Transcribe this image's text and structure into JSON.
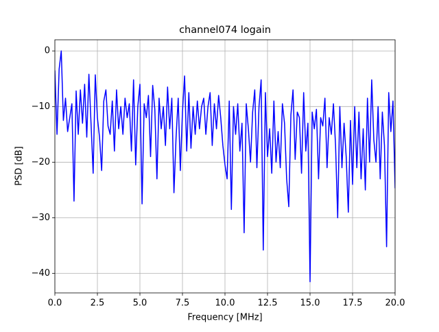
{
  "chart_data": {
    "type": "line",
    "title": "channel074 logain",
    "xlabel": "Frequency [MHz]",
    "ylabel": "PSD [dB]",
    "x": [
      0,
      0.125,
      0.25,
      0.375,
      0.5,
      0.625,
      0.75,
      0.875,
      1,
      1.125,
      1.25,
      1.375,
      1.5,
      1.625,
      1.75,
      1.875,
      2,
      2.125,
      2.25,
      2.375,
      2.5,
      2.625,
      2.75,
      2.875,
      3,
      3.125,
      3.25,
      3.375,
      3.5,
      3.625,
      3.75,
      3.875,
      4,
      4.125,
      4.25,
      4.375,
      4.5,
      4.625,
      4.75,
      4.875,
      5,
      5.125,
      5.25,
      5.375,
      5.5,
      5.625,
      5.75,
      5.875,
      6,
      6.125,
      6.25,
      6.375,
      6.5,
      6.625,
      6.75,
      6.875,
      7,
      7.125,
      7.25,
      7.375,
      7.5,
      7.625,
      7.75,
      7.875,
      8,
      8.125,
      8.25,
      8.375,
      8.5,
      8.625,
      8.75,
      8.875,
      9,
      9.125,
      9.25,
      9.375,
      9.5,
      9.625,
      9.75,
      9.875,
      10,
      10.125,
      10.25,
      10.375,
      10.5,
      10.625,
      10.75,
      10.875,
      11,
      11.125,
      11.25,
      11.375,
      11.5,
      11.625,
      11.75,
      11.875,
      12,
      12.125,
      12.25,
      12.375,
      12.5,
      12.625,
      12.75,
      12.875,
      13,
      13.125,
      13.25,
      13.375,
      13.5,
      13.625,
      13.75,
      13.875,
      14,
      14.125,
      14.25,
      14.375,
      14.5,
      14.625,
      14.75,
      14.875,
      15,
      15.125,
      15.25,
      15.375,
      15.5,
      15.625,
      15.75,
      15.875,
      16,
      16.125,
      16.25,
      16.375,
      16.5,
      16.625,
      16.75,
      16.875,
      17,
      17.125,
      17.25,
      17.375,
      17.5,
      17.625,
      17.75,
      17.875,
      18,
      18.125,
      18.25,
      18.375,
      18.5,
      18.625,
      18.75,
      18.875,
      19,
      19.125,
      19.25,
      19.375,
      19.5,
      19.625,
      19.75,
      19.875,
      20
    ],
    "series": [
      {
        "color": "#0000ff",
        "values": [
          -3.5,
          -15,
          -3.3,
          0,
          -12.5,
          -8.5,
          -14.5,
          -12,
          -9.5,
          -27,
          -7.2,
          -15,
          -7,
          -13,
          -6,
          -15.5,
          -4.2,
          -13,
          -22,
          -4.3,
          -12,
          -15.5,
          -21.5,
          -9,
          -7,
          -13.5,
          -15,
          -9,
          -18,
          -7,
          -14,
          -10,
          -15,
          -8.5,
          -12,
          -9.5,
          -18,
          -5.2,
          -20.5,
          -10,
          -6,
          -27.5,
          -9.5,
          -12,
          -8,
          -19,
          -6.2,
          -10.5,
          -23,
          -8.5,
          -14,
          -10,
          -17,
          -6.5,
          -14,
          -8.5,
          -25.5,
          -15.5,
          -8.5,
          -21.5,
          -11,
          -4.5,
          -18,
          -7.5,
          -17.5,
          -10,
          -15,
          -9,
          -14,
          -10,
          -8.5,
          -15,
          -10,
          -7.5,
          -17,
          -9.5,
          -14,
          -8,
          -12,
          -17,
          -20.5,
          -23,
          -9,
          -28.5,
          -10,
          -15,
          -9.5,
          -18,
          -13,
          -32.7,
          -9.5,
          -14,
          -20,
          -11,
          -7,
          -21,
          -10,
          -5.2,
          -35.8,
          -7.5,
          -19,
          -14,
          -22,
          -9,
          -20,
          -14.5,
          -21,
          -9.5,
          -13,
          -23,
          -28,
          -11.5,
          -7,
          -19.5,
          -11,
          -12,
          -22,
          -7.5,
          -18,
          -13,
          -41.5,
          -11,
          -14,
          -10.5,
          -23,
          -12,
          -13.5,
          -8.5,
          -21,
          -12,
          -15,
          -9.5,
          -17,
          -30,
          -10,
          -21,
          -13,
          -19,
          -29,
          -12.5,
          -24,
          -10,
          -21,
          -11,
          -23,
          -14,
          -25,
          -8.5,
          -20,
          -5.2,
          -16,
          -20,
          -10,
          -23,
          -11,
          -17,
          -35.2,
          -7.5,
          -14.5,
          -9,
          -24.7
        ]
      }
    ],
    "xlim": [
      0,
      20
    ],
    "ylim": [
      -43.5,
      2
    ],
    "xticks": [
      {
        "value": 0,
        "label": "0.0"
      },
      2.5,
      {
        "value": 5,
        "label": "5.0"
      },
      7.5,
      {
        "value": 10,
        "label": "10.0"
      },
      12.5,
      {
        "value": 15,
        "label": "15.0"
      },
      17.5,
      {
        "value": 20,
        "label": "20.0"
      }
    ],
    "yticks": [
      {
        "value": -40,
        "label": "−40"
      },
      {
        "value": -30,
        "label": "−30"
      },
      {
        "value": -20,
        "label": "−20"
      },
      {
        "value": -10,
        "label": "−10"
      },
      0
    ],
    "grid": true
  }
}
